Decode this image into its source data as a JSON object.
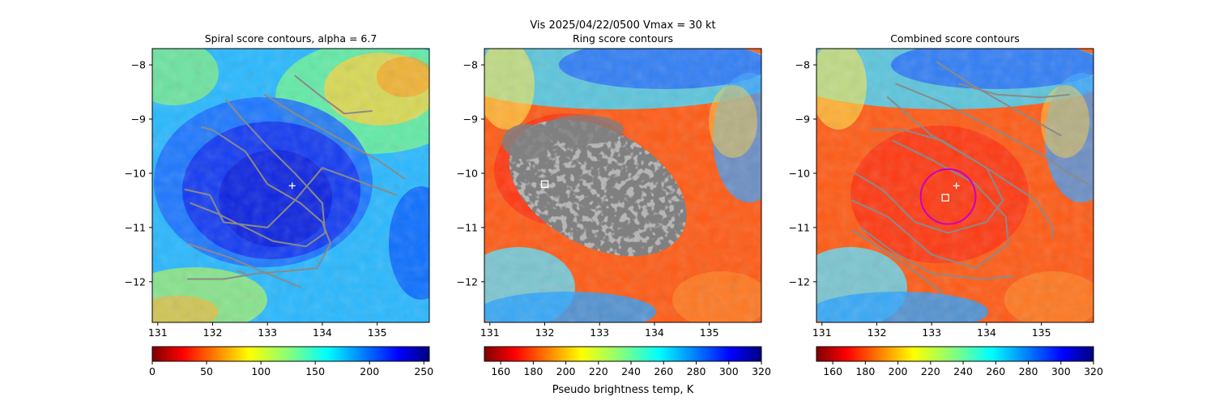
{
  "chart_data": {
    "type": "heatmap",
    "suptitle": "Vis  2025/04/22/0500    Vmax = 30 kt",
    "colorbar_label": "Pseudo brightness temp, K",
    "x_ticks": [
      "131",
      "132",
      "133",
      "134",
      "135"
    ],
    "y_ticks": [
      "−8",
      "−9",
      "−10",
      "−11",
      "−12"
    ],
    "xlim": [
      130.9,
      135.95
    ],
    "ylim": [
      -12.75,
      -7.7
    ],
    "panels": [
      {
        "title": "Spiral score contours, alpha =  6.7",
        "colormap": "jet_reversed",
        "colorbar_ticks": [
          "0",
          "50",
          "100",
          "150",
          "200",
          "250"
        ],
        "colorbar_range": [
          0,
          255
        ],
        "markers": [
          {
            "type": "plus",
            "lon": 133.45,
            "lat": -10.23
          }
        ],
        "contours": [
          [
            [
              131.55,
              -11.95
            ],
            [
              132.2,
              -11.95
            ],
            [
              132.8,
              -11.85
            ],
            [
              133.4,
              -11.8
            ],
            [
              133.9,
              -11.75
            ],
            [
              134.15,
              -11.3
            ],
            [
              134.0,
              -10.9
            ],
            [
              133.6,
              -10.55
            ],
            [
              133.0,
              -10.2
            ],
            [
              132.6,
              -9.6
            ],
            [
              132.0,
              -9.2
            ],
            [
              131.8,
              -9.15
            ]
          ],
          [
            [
              131.6,
              -10.55
            ],
            [
              132.1,
              -10.75
            ],
            [
              132.6,
              -11.0
            ],
            [
              133.1,
              -11.25
            ],
            [
              133.7,
              -11.35
            ],
            [
              134.05,
              -11.1
            ],
            [
              134.0,
              -10.55
            ],
            [
              133.5,
              -10.0
            ],
            [
              133.0,
              -9.5
            ],
            [
              132.5,
              -8.95
            ],
            [
              132.25,
              -8.65
            ]
          ],
          [
            [
              131.5,
              -10.3
            ],
            [
              131.95,
              -10.4
            ],
            [
              132.2,
              -10.9
            ],
            [
              133.0,
              -11.0
            ],
            [
              133.5,
              -10.5
            ],
            [
              134.0,
              -9.9
            ],
            [
              135.35,
              -10.4
            ]
          ],
          [
            [
              131.55,
              -11.3
            ],
            [
              132.3,
              -11.55
            ],
            [
              133.0,
              -11.85
            ],
            [
              133.6,
              -12.1
            ]
          ],
          [
            [
              132.95,
              -8.55
            ],
            [
              133.5,
              -8.9
            ],
            [
              134.2,
              -9.3
            ],
            [
              135.0,
              -9.75
            ],
            [
              135.5,
              -10.1
            ]
          ],
          [
            [
              133.5,
              -8.2
            ],
            [
              134.0,
              -8.6
            ],
            [
              134.4,
              -8.9
            ],
            [
              134.9,
              -8.85
            ]
          ],
          [
            [
              132.45,
              -11.8
            ],
            [
              132.6,
              -11.85
            ]
          ]
        ]
      },
      {
        "title": "Ring score contours",
        "colormap": "jet_reversed",
        "colorbar_ticks": [
          "160",
          "180",
          "200",
          "220",
          "240",
          "260",
          "280",
          "300",
          "320"
        ],
        "colorbar_range": [
          150,
          320
        ],
        "markers": [
          {
            "type": "square",
            "lon": 132.0,
            "lat": -10.2
          }
        ],
        "contours": []
      },
      {
        "title": "Combined score contours",
        "colormap": "jet_reversed",
        "colorbar_ticks": [
          "160",
          "180",
          "200",
          "220",
          "240",
          "260",
          "280",
          "300",
          "320"
        ],
        "colorbar_range": [
          150,
          320
        ],
        "markers": [
          {
            "type": "plus",
            "lon": 133.45,
            "lat": -10.23
          },
          {
            "type": "square",
            "lon": 133.25,
            "lat": -10.45
          },
          {
            "type": "circle",
            "lon": 133.3,
            "lat": -10.43,
            "radius_deg": 0.5
          }
        ],
        "contours": [
          [
            [
              131.6,
              -10.0
            ],
            [
              132.1,
              -10.3
            ],
            [
              132.7,
              -10.9
            ],
            [
              133.3,
              -11.1
            ],
            [
              134.0,
              -10.9
            ],
            [
              134.3,
              -10.5
            ],
            [
              134.0,
              -9.9
            ],
            [
              133.2,
              -9.4
            ],
            [
              132.5,
              -9.2
            ],
            [
              131.9,
              -9.2
            ]
          ],
          [
            [
              131.55,
              -10.5
            ],
            [
              132.2,
              -10.8
            ],
            [
              133.0,
              -11.5
            ],
            [
              133.8,
              -11.75
            ],
            [
              134.4,
              -11.3
            ],
            [
              134.35,
              -10.8
            ],
            [
              133.8,
              -10.2
            ],
            [
              133.0,
              -9.75
            ],
            [
              132.3,
              -9.4
            ]
          ],
          [
            [
              131.7,
              -11.0
            ],
            [
              132.3,
              -11.45
            ],
            [
              133.0,
              -11.85
            ],
            [
              133.9,
              -11.95
            ],
            [
              134.5,
              -11.9
            ]
          ],
          [
            [
              131.55,
              -11.05
            ],
            [
              132.4,
              -11.6
            ],
            [
              133.2,
              -12.2
            ]
          ],
          [
            [
              132.2,
              -8.6
            ],
            [
              133.0,
              -9.3
            ],
            [
              134.0,
              -9.9
            ],
            [
              134.9,
              -10.5
            ],
            [
              135.2,
              -11.0
            ],
            [
              135.2,
              -11.2
            ]
          ],
          [
            [
              132.35,
              -8.35
            ],
            [
              133.2,
              -8.7
            ],
            [
              134.0,
              -9.1
            ],
            [
              135.0,
              -9.65
            ],
            [
              135.5,
              -10.0
            ],
            [
              135.85,
              -10.2
            ]
          ],
          [
            [
              133.1,
              -7.95
            ],
            [
              133.7,
              -8.35
            ],
            [
              134.3,
              -8.7
            ],
            [
              135.0,
              -9.1
            ],
            [
              135.35,
              -9.3
            ]
          ],
          [
            [
              133.5,
              -8.35
            ],
            [
              134.2,
              -8.55
            ],
            [
              135.0,
              -8.6
            ],
            [
              135.5,
              -8.55
            ]
          ]
        ]
      }
    ]
  }
}
